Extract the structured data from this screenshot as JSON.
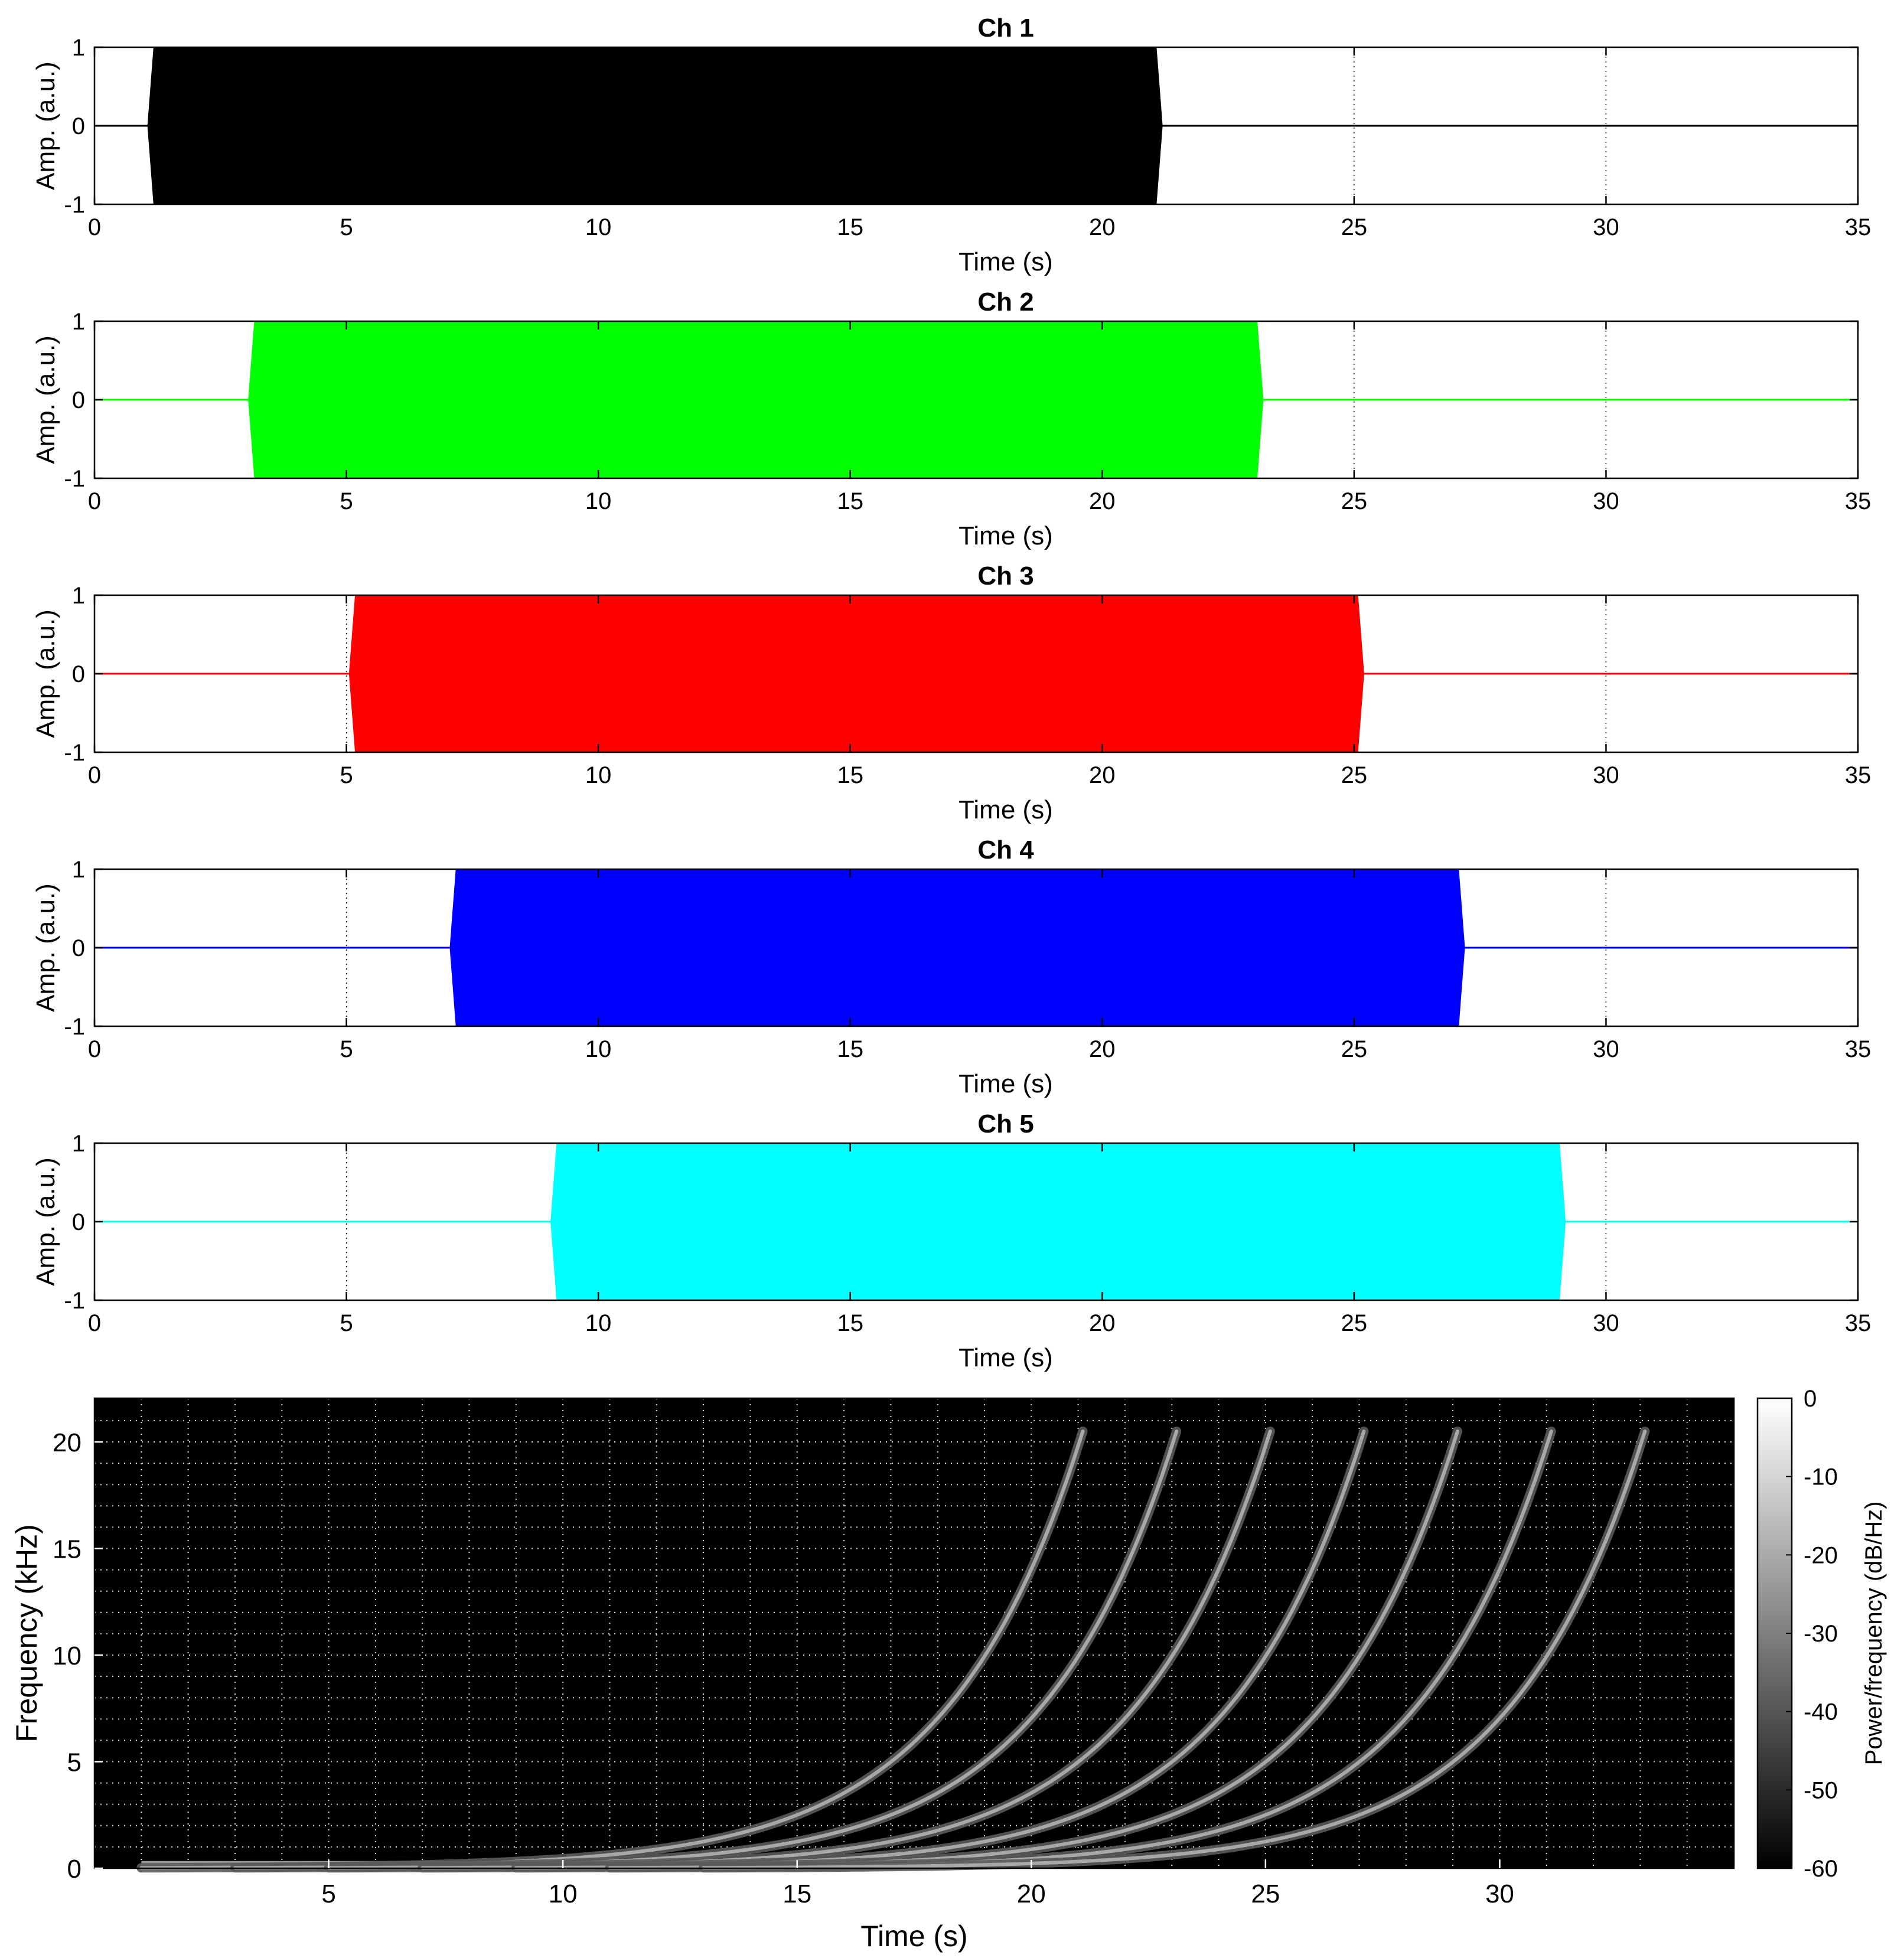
{
  "chart_data": [
    {
      "type": "area",
      "title": "Ch 1",
      "xlabel": "Time (s)",
      "ylabel": "Amp. (a.u.)",
      "xlim": [
        0,
        35
      ],
      "ylim": [
        -1,
        1
      ],
      "xticks": [
        "0",
        "5",
        "10",
        "15",
        "20",
        "25",
        "30",
        "35"
      ],
      "yticks": [
        "-1",
        "0",
        "1"
      ],
      "grid": "x-dotted",
      "color": "#000000",
      "signal": {
        "start": 1.05,
        "end": 21.2,
        "amplitude": 1
      }
    },
    {
      "type": "area",
      "title": "Ch 2",
      "xlabel": "Time (s)",
      "ylabel": "Amp. (a.u.)",
      "xlim": [
        0,
        35
      ],
      "ylim": [
        -1,
        1
      ],
      "xticks": [
        "0",
        "5",
        "10",
        "15",
        "20",
        "25",
        "30",
        "35"
      ],
      "yticks": [
        "-1",
        "0",
        "1"
      ],
      "grid": "x-dotted",
      "color": "#00ff00",
      "signal": {
        "start": 3.05,
        "end": 23.2,
        "amplitude": 1
      }
    },
    {
      "type": "area",
      "title": "Ch 3",
      "xlabel": "Time (s)",
      "ylabel": "Amp. (a.u.)",
      "xlim": [
        0,
        35
      ],
      "ylim": [
        -1,
        1
      ],
      "xticks": [
        "0",
        "5",
        "10",
        "15",
        "20",
        "25",
        "30",
        "35"
      ],
      "yticks": [
        "-1",
        "0",
        "1"
      ],
      "grid": "x-dotted",
      "color": "#ff0000",
      "signal": {
        "start": 5.05,
        "end": 25.2,
        "amplitude": 1
      }
    },
    {
      "type": "area",
      "title": "Ch 4",
      "xlabel": "Time (s)",
      "ylabel": "Amp. (a.u.)",
      "xlim": [
        0,
        35
      ],
      "ylim": [
        -1,
        1
      ],
      "xticks": [
        "0",
        "5",
        "10",
        "15",
        "20",
        "25",
        "30",
        "35"
      ],
      "yticks": [
        "-1",
        "0",
        "1"
      ],
      "grid": "x-dotted",
      "color": "#0000ff",
      "signal": {
        "start": 7.05,
        "end": 27.2,
        "amplitude": 1
      }
    },
    {
      "type": "area",
      "title": "Ch 5",
      "xlabel": "Time (s)",
      "ylabel": "Amp. (a.u.)",
      "xlim": [
        0,
        35
      ],
      "ylim": [
        -1,
        1
      ],
      "xticks": [
        "0",
        "5",
        "10",
        "15",
        "20",
        "25",
        "30",
        "35"
      ],
      "yticks": [
        "-1",
        "0",
        "1"
      ],
      "grid": "x-dotted",
      "color": "#00ffff",
      "signal": {
        "start": 9.05,
        "end": 29.2,
        "amplitude": 1
      }
    },
    {
      "type": "heatmap",
      "title": "",
      "xlabel": "Time (s)",
      "ylabel": "Frequency (kHz)",
      "xlim": [
        0,
        35
      ],
      "ylim": [
        0,
        22.05
      ],
      "xticks": [
        "5",
        "10",
        "15",
        "20",
        "25",
        "30"
      ],
      "yticks": [
        "0",
        "5",
        "10",
        "15",
        "20"
      ],
      "grid": "both-dotted",
      "colormap": "gray",
      "background": "#000000",
      "colorbar": {
        "label": "Power/frequency (dB/Hz)",
        "range": [
          -60,
          0
        ],
        "ticks": [
          "0",
          "-10",
          "-20",
          "-30",
          "-40",
          "-50",
          "-60"
        ]
      },
      "baseline": {
        "start": 1.0,
        "end": 10.2,
        "frequency": 0.2
      },
      "sweeps": [
        {
          "start": 1.0,
          "end": 21.1,
          "f_start": 0.02,
          "f_end": 20.5
        },
        {
          "start": 3.0,
          "end": 23.1,
          "f_start": 0.02,
          "f_end": 20.5
        },
        {
          "start": 5.0,
          "end": 25.1,
          "f_start": 0.02,
          "f_end": 20.5
        },
        {
          "start": 7.0,
          "end": 27.1,
          "f_start": 0.02,
          "f_end": 20.5
        },
        {
          "start": 9.0,
          "end": 29.1,
          "f_start": 0.02,
          "f_end": 20.5
        },
        {
          "start": 11.0,
          "end": 31.1,
          "f_start": 0.02,
          "f_end": 20.5
        },
        {
          "start": 13.0,
          "end": 33.1,
          "f_start": 0.02,
          "f_end": 20.5
        }
      ]
    }
  ]
}
